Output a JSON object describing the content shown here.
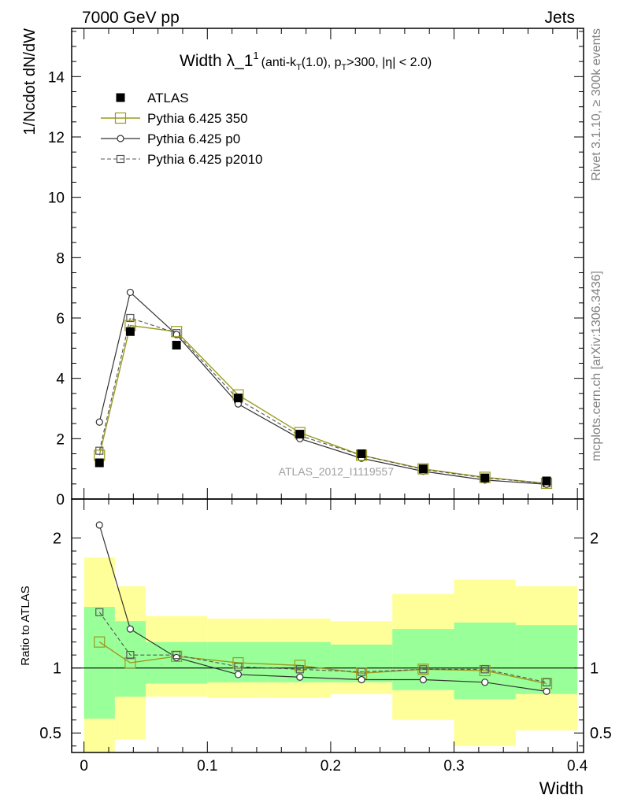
{
  "header": {
    "left": "7000 GeV pp",
    "right": "Jets"
  },
  "side_texts": {
    "rivet": "Rivet 3.1.10, ≥ 300k events",
    "mcplots": "mcplots.cern.ch [arXiv:1306.3436]"
  },
  "watermark": "ATLAS_2012_I1119557",
  "chart_data": [
    {
      "type": "line",
      "title_main": "Width λ_1",
      "title_sup": "1",
      "title_detail": "(anti-k",
      "title_detail_sub": "T",
      "title_detail_mid": "(1.0), p",
      "title_detail_sub2": "T",
      "title_detail_end": ">300, |η| < 2.0)",
      "ylabel": "1/Ncdot dN/dW",
      "xlabel": "Width",
      "xlim": [
        -0.01,
        0.405
      ],
      "ylim": [
        0,
        15.6
      ],
      "yticks": [
        0,
        2,
        4,
        6,
        8,
        10,
        12,
        14
      ],
      "ytick_labels": [
        "0",
        "2",
        "4",
        "6",
        "8",
        "10",
        "12",
        "14"
      ],
      "x": [
        0.0125,
        0.0375,
        0.075,
        0.125,
        0.175,
        0.225,
        0.275,
        0.325,
        0.375
      ],
      "x_edges": [
        0,
        0.025,
        0.05,
        0.1,
        0.15,
        0.2,
        0.25,
        0.3,
        0.35,
        0.4
      ],
      "legend": {
        "placement": "top-left",
        "entries": [
          "ATLAS",
          "Pythia 6.425 350",
          "Pythia 6.425 p0",
          "Pythia 6.425 p2010"
        ]
      },
      "series": [
        {
          "name": "ATLAS",
          "values": [
            1.2,
            5.55,
            5.1,
            3.35,
            2.15,
            1.5,
            1.0,
            0.7,
            0.6
          ],
          "color": "#000000",
          "marker": "filled-square"
        },
        {
          "name": "Pythia 6.425 350",
          "values": [
            1.45,
            5.75,
            5.55,
            3.45,
            2.2,
            1.45,
            1.0,
            0.72,
            0.52
          ],
          "color": "#9a9a1e",
          "marker": "open-square"
        },
        {
          "name": "Pythia 6.425 p0",
          "values": [
            2.55,
            6.85,
            5.45,
            3.15,
            2.0,
            1.35,
            0.92,
            0.63,
            0.49
          ],
          "color": "#333333",
          "marker": "open-circle"
        },
        {
          "name": "Pythia 6.425 p2010",
          "values": [
            1.6,
            6.0,
            5.5,
            3.3,
            2.1,
            1.45,
            0.98,
            0.7,
            0.52
          ],
          "color": "#555555",
          "marker": "open-square-dashed"
        }
      ]
    },
    {
      "type": "line",
      "ylabel": "Ratio to ATLAS",
      "xlabel": "Width",
      "xlim": [
        -0.01,
        0.405
      ],
      "ylim": [
        0.35,
        2.3
      ],
      "xticks": [
        0,
        0.1,
        0.2,
        0.3,
        0.4
      ],
      "xtick_labels": [
        "0",
        "0.1",
        "0.2",
        "0.3",
        "0.4"
      ],
      "yticks": [
        0.5,
        1,
        2
      ],
      "ytick_labels": [
        "0.5",
        "1",
        "2"
      ],
      "x": [
        0.0125,
        0.0375,
        0.075,
        0.125,
        0.175,
        0.225,
        0.275,
        0.325,
        0.375
      ],
      "x_edges": [
        0,
        0.025,
        0.05,
        0.1,
        0.15,
        0.2,
        0.25,
        0.3,
        0.35,
        0.4
      ],
      "band_outer": {
        "color": "#ffff99",
        "lo": [
          0.35,
          0.45,
          0.78,
          0.77,
          0.77,
          0.8,
          0.6,
          0.4,
          0.52
        ],
        "hi": [
          1.85,
          1.63,
          1.4,
          1.38,
          1.38,
          1.36,
          1.57,
          1.68,
          1.63
        ]
      },
      "band_inner": {
        "color": "#99ff99",
        "lo": [
          0.61,
          0.78,
          0.88,
          0.89,
          0.89,
          0.89,
          0.83,
          0.76,
          0.8
        ],
        "hi": [
          1.47,
          1.36,
          1.2,
          1.2,
          1.2,
          1.18,
          1.3,
          1.35,
          1.33
        ]
      },
      "series": [
        {
          "name": "Pythia 6.425 350",
          "values": [
            1.2,
            1.04,
            1.09,
            1.04,
            1.02,
            0.96,
            0.99,
            0.98,
            0.88
          ],
          "color": "#9a9a1e",
          "marker": "open-square"
        },
        {
          "name": "Pythia 6.425 p0",
          "values": [
            2.1,
            1.3,
            1.08,
            0.95,
            0.93,
            0.91,
            0.91,
            0.89,
            0.82
          ],
          "color": "#333333",
          "marker": "open-circle"
        },
        {
          "name": "Pythia 6.425 p2010",
          "values": [
            1.43,
            1.1,
            1.1,
            1.01,
            0.99,
            0.97,
            0.99,
            0.99,
            0.89
          ],
          "color": "#555555",
          "marker": "open-square-dashed"
        }
      ]
    }
  ]
}
